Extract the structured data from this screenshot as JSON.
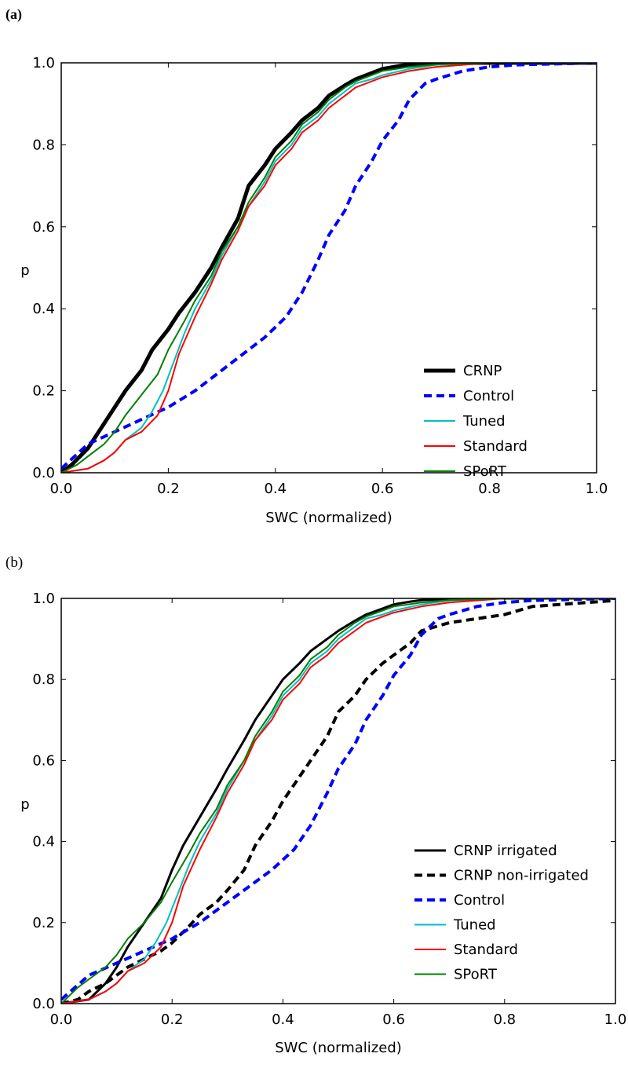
{
  "panels": [
    {
      "label": "(a)"
    },
    {
      "label": "(b)"
    }
  ],
  "chart_data": [
    {
      "type": "line",
      "title": "",
      "xlabel": "SWC (normalized)",
      "ylabel": "p",
      "xlim": [
        0.0,
        1.0
      ],
      "ylim": [
        0.0,
        1.0
      ],
      "xticks": [
        "0.0",
        "0.2",
        "0.4",
        "0.6",
        "0.8",
        "1.0"
      ],
      "yticks": [
        "0.0",
        "0.2",
        "0.4",
        "0.6",
        "0.8",
        "1.0"
      ],
      "grid": false,
      "legend_position": "lower-right",
      "series": [
        {
          "name": "CRNP",
          "color": "#000000",
          "style": "solid",
          "width": 5,
          "x": [
            0.0,
            0.02,
            0.05,
            0.08,
            0.1,
            0.12,
            0.15,
            0.17,
            0.2,
            0.22,
            0.25,
            0.28,
            0.3,
            0.33,
            0.35,
            0.38,
            0.4,
            0.43,
            0.45,
            0.48,
            0.5,
            0.53,
            0.55,
            0.58,
            0.6,
            0.63,
            0.65,
            0.68,
            0.7,
            0.8,
            1.0
          ],
          "y": [
            0.0,
            0.02,
            0.06,
            0.12,
            0.16,
            0.2,
            0.25,
            0.3,
            0.35,
            0.39,
            0.44,
            0.5,
            0.55,
            0.62,
            0.7,
            0.75,
            0.79,
            0.83,
            0.86,
            0.89,
            0.92,
            0.945,
            0.96,
            0.975,
            0.985,
            0.992,
            0.996,
            0.998,
            0.999,
            1.0,
            1.0
          ]
        },
        {
          "name": "Control",
          "color": "#0000ff",
          "style": "dashed",
          "width": 4,
          "x": [
            0.0,
            0.05,
            0.1,
            0.15,
            0.2,
            0.25,
            0.3,
            0.35,
            0.38,
            0.42,
            0.45,
            0.48,
            0.5,
            0.53,
            0.55,
            0.58,
            0.6,
            0.63,
            0.65,
            0.68,
            0.7,
            0.75,
            0.8,
            0.85,
            1.0
          ],
          "y": [
            0.01,
            0.07,
            0.1,
            0.13,
            0.16,
            0.2,
            0.25,
            0.3,
            0.33,
            0.38,
            0.44,
            0.52,
            0.58,
            0.64,
            0.7,
            0.76,
            0.81,
            0.86,
            0.91,
            0.95,
            0.96,
            0.98,
            0.99,
            0.995,
            1.0
          ]
        },
        {
          "name": "Tuned",
          "color": "#00c0c0",
          "style": "solid",
          "width": 2,
          "x": [
            0.0,
            0.05,
            0.08,
            0.1,
            0.12,
            0.15,
            0.17,
            0.19,
            0.21,
            0.23,
            0.25,
            0.28,
            0.3,
            0.33,
            0.35,
            0.38,
            0.4,
            0.43,
            0.45,
            0.48,
            0.5,
            0.53,
            0.55,
            0.58,
            0.6,
            0.65,
            0.7,
            0.8,
            1.0
          ],
          "y": [
            0.0,
            0.01,
            0.03,
            0.05,
            0.08,
            0.11,
            0.15,
            0.2,
            0.27,
            0.34,
            0.4,
            0.47,
            0.53,
            0.6,
            0.65,
            0.71,
            0.76,
            0.8,
            0.84,
            0.87,
            0.9,
            0.93,
            0.95,
            0.96,
            0.97,
            0.985,
            0.995,
            1.0,
            1.0
          ]
        },
        {
          "name": "Standard",
          "color": "#ff0000",
          "style": "solid",
          "width": 2,
          "x": [
            0.0,
            0.05,
            0.08,
            0.1,
            0.12,
            0.15,
            0.18,
            0.2,
            0.22,
            0.25,
            0.28,
            0.3,
            0.33,
            0.35,
            0.38,
            0.4,
            0.43,
            0.45,
            0.48,
            0.5,
            0.53,
            0.55,
            0.58,
            0.6,
            0.65,
            0.7,
            0.8,
            1.0
          ],
          "y": [
            0.0,
            0.01,
            0.03,
            0.05,
            0.08,
            0.1,
            0.14,
            0.2,
            0.29,
            0.38,
            0.46,
            0.52,
            0.59,
            0.65,
            0.7,
            0.75,
            0.79,
            0.83,
            0.86,
            0.89,
            0.92,
            0.94,
            0.955,
            0.965,
            0.98,
            0.99,
            1.0,
            1.0
          ]
        },
        {
          "name": "SPoRT",
          "color": "#008000",
          "style": "solid",
          "width": 2,
          "x": [
            0.0,
            0.03,
            0.05,
            0.08,
            0.1,
            0.12,
            0.15,
            0.18,
            0.2,
            0.23,
            0.25,
            0.28,
            0.3,
            0.33,
            0.35,
            0.38,
            0.4,
            0.43,
            0.45,
            0.48,
            0.5,
            0.53,
            0.55,
            0.58,
            0.6,
            0.65,
            0.7,
            0.8,
            1.0
          ],
          "y": [
            0.0,
            0.02,
            0.04,
            0.07,
            0.1,
            0.14,
            0.19,
            0.24,
            0.3,
            0.37,
            0.42,
            0.48,
            0.54,
            0.6,
            0.66,
            0.72,
            0.77,
            0.81,
            0.85,
            0.88,
            0.91,
            0.94,
            0.955,
            0.97,
            0.98,
            0.99,
            0.996,
            1.0,
            1.0
          ]
        }
      ]
    },
    {
      "type": "line",
      "title": "",
      "xlabel": "SWC (normalized)",
      "ylabel": "p",
      "xlim": [
        0.0,
        1.0
      ],
      "ylim": [
        0.0,
        1.0
      ],
      "xticks": [
        "0.0",
        "0.2",
        "0.4",
        "0.6",
        "0.8",
        "1.0"
      ],
      "yticks": [
        "0.0",
        "0.2",
        "0.4",
        "0.6",
        "0.8",
        "1.0"
      ],
      "grid": false,
      "legend_position": "lower-right",
      "series": [
        {
          "name": "CRNP irrigated",
          "color": "#000000",
          "style": "solid",
          "width": 3,
          "x": [
            0.0,
            0.05,
            0.08,
            0.1,
            0.12,
            0.15,
            0.18,
            0.2,
            0.22,
            0.25,
            0.28,
            0.3,
            0.33,
            0.35,
            0.38,
            0.4,
            0.43,
            0.45,
            0.48,
            0.5,
            0.53,
            0.55,
            0.58,
            0.6,
            0.63,
            0.65,
            0.7,
            0.8,
            1.0
          ],
          "y": [
            0.0,
            0.01,
            0.05,
            0.09,
            0.14,
            0.2,
            0.26,
            0.33,
            0.39,
            0.46,
            0.53,
            0.58,
            0.65,
            0.7,
            0.76,
            0.8,
            0.84,
            0.87,
            0.9,
            0.92,
            0.945,
            0.96,
            0.975,
            0.985,
            0.992,
            0.996,
            0.999,
            1.0,
            1.0
          ]
        },
        {
          "name": "CRNP non-irrigated",
          "color": "#000000",
          "style": "dashed",
          "width": 4,
          "x": [
            0.0,
            0.03,
            0.05,
            0.08,
            0.1,
            0.12,
            0.15,
            0.18,
            0.2,
            0.23,
            0.25,
            0.28,
            0.3,
            0.33,
            0.35,
            0.38,
            0.4,
            0.43,
            0.45,
            0.48,
            0.5,
            0.53,
            0.55,
            0.58,
            0.6,
            0.63,
            0.65,
            0.7,
            0.75,
            0.8,
            0.85,
            0.9,
            0.95,
            1.0
          ],
          "y": [
            0.0,
            0.01,
            0.03,
            0.05,
            0.07,
            0.09,
            0.11,
            0.13,
            0.15,
            0.19,
            0.22,
            0.25,
            0.28,
            0.33,
            0.39,
            0.45,
            0.5,
            0.56,
            0.6,
            0.66,
            0.72,
            0.76,
            0.8,
            0.84,
            0.86,
            0.89,
            0.92,
            0.94,
            0.95,
            0.96,
            0.98,
            0.985,
            0.99,
            0.995
          ]
        },
        {
          "name": "Control",
          "color": "#0000ff",
          "style": "dashed",
          "width": 4,
          "x": [
            0.0,
            0.05,
            0.1,
            0.15,
            0.2,
            0.25,
            0.3,
            0.35,
            0.38,
            0.42,
            0.45,
            0.48,
            0.5,
            0.53,
            0.55,
            0.58,
            0.6,
            0.63,
            0.65,
            0.68,
            0.7,
            0.75,
            0.8,
            0.85,
            1.0
          ],
          "y": [
            0.01,
            0.07,
            0.1,
            0.13,
            0.16,
            0.2,
            0.25,
            0.3,
            0.33,
            0.38,
            0.44,
            0.52,
            0.58,
            0.64,
            0.7,
            0.76,
            0.81,
            0.86,
            0.91,
            0.95,
            0.96,
            0.98,
            0.99,
            0.995,
            1.0
          ]
        },
        {
          "name": "Tuned",
          "color": "#00c0c0",
          "style": "solid",
          "width": 2,
          "x": [
            0.0,
            0.05,
            0.08,
            0.1,
            0.12,
            0.15,
            0.17,
            0.19,
            0.21,
            0.23,
            0.25,
            0.28,
            0.3,
            0.33,
            0.35,
            0.38,
            0.4,
            0.43,
            0.45,
            0.48,
            0.5,
            0.53,
            0.55,
            0.58,
            0.6,
            0.65,
            0.7,
            0.8,
            1.0
          ],
          "y": [
            0.0,
            0.01,
            0.03,
            0.05,
            0.08,
            0.11,
            0.15,
            0.2,
            0.27,
            0.34,
            0.4,
            0.47,
            0.53,
            0.6,
            0.65,
            0.71,
            0.76,
            0.8,
            0.84,
            0.87,
            0.9,
            0.93,
            0.95,
            0.96,
            0.97,
            0.985,
            0.995,
            1.0,
            1.0
          ]
        },
        {
          "name": "Standard",
          "color": "#ff0000",
          "style": "solid",
          "width": 2,
          "x": [
            0.0,
            0.05,
            0.08,
            0.1,
            0.12,
            0.15,
            0.18,
            0.2,
            0.22,
            0.25,
            0.28,
            0.3,
            0.33,
            0.35,
            0.38,
            0.4,
            0.43,
            0.45,
            0.48,
            0.5,
            0.53,
            0.55,
            0.58,
            0.6,
            0.65,
            0.7,
            0.8,
            1.0
          ],
          "y": [
            0.0,
            0.01,
            0.03,
            0.05,
            0.08,
            0.1,
            0.14,
            0.2,
            0.29,
            0.38,
            0.46,
            0.52,
            0.59,
            0.65,
            0.7,
            0.75,
            0.79,
            0.83,
            0.86,
            0.89,
            0.92,
            0.94,
            0.955,
            0.965,
            0.98,
            0.99,
            1.0,
            1.0
          ]
        },
        {
          "name": "SPoRT",
          "color": "#008000",
          "style": "solid",
          "width": 2,
          "x": [
            0.0,
            0.03,
            0.05,
            0.08,
            0.1,
            0.12,
            0.15,
            0.18,
            0.2,
            0.23,
            0.25,
            0.28,
            0.3,
            0.33,
            0.35,
            0.38,
            0.4,
            0.43,
            0.45,
            0.48,
            0.5,
            0.53,
            0.55,
            0.58,
            0.6,
            0.65,
            0.7,
            0.8,
            1.0
          ],
          "y": [
            0.0,
            0.04,
            0.06,
            0.09,
            0.12,
            0.16,
            0.2,
            0.25,
            0.3,
            0.37,
            0.42,
            0.48,
            0.54,
            0.6,
            0.66,
            0.72,
            0.77,
            0.81,
            0.85,
            0.88,
            0.91,
            0.94,
            0.955,
            0.97,
            0.98,
            0.99,
            0.996,
            1.0,
            1.0
          ]
        }
      ]
    }
  ]
}
